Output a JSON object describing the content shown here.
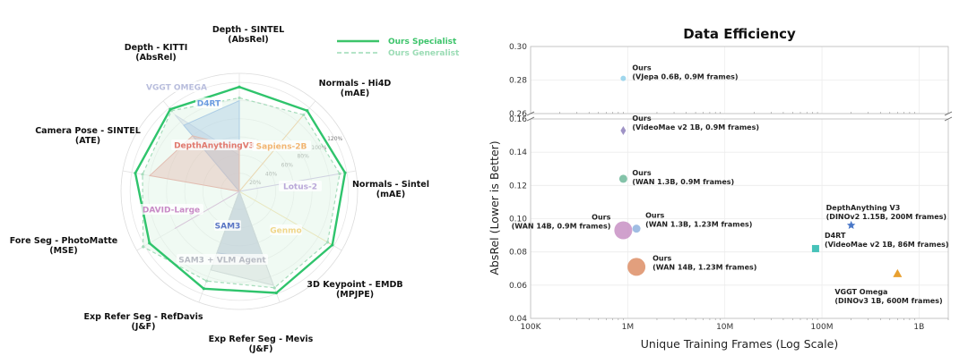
{
  "chart_data": [
    {
      "type": "radar",
      "axes": [
        "Depth - SINTEL\n(AbsRel)",
        "Normals - Hi4D\n(mAE)",
        "Normals - Sintel\n(mAE)",
        "3D Keypoint - EMDB\n(MPJPE)",
        "Exp Refer Seg - Mevis\n(J&F)",
        "Exp Refer Seg - RefDavis\n(J&F)",
        "Fore Seg - PhotoMatte\n(MSE)",
        "Camera Pose - SINTEL\n(ATE)",
        "Depth - KITTI\n(AbsRel)"
      ],
      "radial_ticks": [
        "20%",
        "40%",
        "60%",
        "80%",
        "100%",
        "120%"
      ],
      "tick_values": [
        20,
        40,
        60,
        80,
        100,
        120
      ],
      "rmax": 130,
      "legend": [
        {
          "name": "Ours Specialist",
          "color": "#3cc46a",
          "dashed": false
        },
        {
          "name": "Ours Generalist",
          "color": "#9bdcb5",
          "dashed": true
        }
      ],
      "series": [
        {
          "name": "Ours Specialist",
          "kind": "line",
          "color": "#2fc46c",
          "values": [
            115,
            116,
            118,
            118,
            119,
            114,
            114,
            116,
            118
          ]
        },
        {
          "name": "Ours Generalist",
          "kind": "dashed",
          "color": "#a6dcbb",
          "values": [
            103,
            110,
            112,
            112,
            113,
            105,
            122,
            108,
            116
          ]
        },
        {
          "name": "VGGT OMEGA",
          "kind": "baseline",
          "color": "#b9bedd",
          "values": [
            40,
            0,
            0,
            0,
            0,
            0,
            0,
            0,
            110
          ]
        },
        {
          "name": "D4RT",
          "kind": "baseline",
          "color": "#6a9be0",
          "values": [
            100,
            0,
            0,
            0,
            0,
            0,
            0,
            0,
            95
          ]
        },
        {
          "name": "DepthAnythingV3",
          "kind": "baseline",
          "color": "#e0786e",
          "values": [
            48,
            0,
            0,
            0,
            0,
            0,
            0,
            100,
            80
          ]
        },
        {
          "name": "Sapiens-2B",
          "kind": "baseline",
          "color": "#f2b572",
          "values": [
            0,
            110,
            0,
            0,
            0,
            0,
            0,
            0,
            0
          ]
        },
        {
          "name": "Lotus-2",
          "kind": "baseline",
          "color": "#b9a7d8",
          "values": [
            0,
            0,
            112,
            0,
            0,
            0,
            0,
            0,
            0
          ]
        },
        {
          "name": "Genmo",
          "kind": "baseline",
          "color": "#f0d68a",
          "values": [
            0,
            0,
            0,
            118,
            0,
            0,
            0,
            0,
            0
          ]
        },
        {
          "name": "SAM3",
          "kind": "baseline",
          "color": "#5b76c5",
          "values": [
            0,
            0,
            0,
            0,
            80,
            72,
            0,
            0,
            0
          ]
        },
        {
          "name": "SAM3 + VLM Agent",
          "kind": "baseline",
          "color": "#b8bcc4",
          "values": [
            0,
            0,
            0,
            0,
            110,
            92,
            0,
            0,
            0
          ]
        },
        {
          "name": "DAVID-Large",
          "kind": "baseline",
          "color": "#c88ac6",
          "values": [
            0,
            0,
            0,
            0,
            0,
            0,
            82,
            0,
            0
          ]
        }
      ]
    },
    {
      "type": "scatter",
      "title": "Data Efficiency",
      "xlabel": "Unique Training Frames (Log Scale)",
      "ylabel": "AbsRel (Lower is Better)",
      "xscale": "log",
      "xlim": [
        100000,
        2000000000
      ],
      "x_ticks": [
        100000,
        1000000,
        10000000,
        100000000,
        1000000000
      ],
      "x_tick_labels": [
        "100K",
        "1M",
        "10M",
        "100M",
        "1B"
      ],
      "y_broken_axis": true,
      "ylim_upper": [
        0.26,
        0.3
      ],
      "y_ticks_upper": [
        "0.26",
        "0.28",
        "0.30"
      ],
      "ylim_lower": [
        0.04,
        0.16
      ],
      "y_ticks_lower": [
        "0.04",
        "0.06",
        "0.08",
        "0.10",
        "0.12",
        "0.14",
        "0.16"
      ],
      "grid": true,
      "points": [
        {
          "label": [
            "Ours",
            "(VJepa 0.6B, 0.9M frames)"
          ],
          "x": 900000,
          "y": 0.281,
          "marker": "circle",
          "size": 3,
          "color": "#8fd0ea"
        },
        {
          "label": [
            "Ours",
            "(VideoMae v2 1B, 0.9M frames)"
          ],
          "x": 900000,
          "y": 0.153,
          "marker": "diamond",
          "size": 5,
          "color": "#9f93c6"
        },
        {
          "label": [
            "Ours",
            "(WAN 1.3B, 0.9M frames)"
          ],
          "x": 900000,
          "y": 0.124,
          "marker": "circle",
          "size": 4.5,
          "color": "#6fb89a"
        },
        {
          "label": [
            "Ours",
            "(WAN 14B, 0.9M frames)"
          ],
          "x": 900000,
          "y": 0.093,
          "marker": "circle",
          "size": 10,
          "color": "#c890c4"
        },
        {
          "label": [
            "Ours",
            "(WAN 1.3B, 1.23M frames)"
          ],
          "x": 1230000,
          "y": 0.094,
          "marker": "circle",
          "size": 4.5,
          "color": "#8fb2de"
        },
        {
          "label": [
            "Ours",
            "(WAN 14B, 1.23M frames)"
          ],
          "x": 1230000,
          "y": 0.071,
          "marker": "circle",
          "size": 10,
          "color": "#dd8e66"
        },
        {
          "label": [
            "DepthAnything V3",
            "(DINOv2 1.15B, 200M frames)"
          ],
          "x": 200000000,
          "y": 0.096,
          "marker": "star",
          "size": 5,
          "color": "#4a78c8"
        },
        {
          "label": [
            "D4RT",
            "(VideoMae v2 1B, 86M frames)"
          ],
          "x": 86000000,
          "y": 0.082,
          "marker": "square",
          "size": 4,
          "color": "#47c2b9"
        },
        {
          "label": [
            "VGGT Omega",
            "(DINOv3 1B, 600M frames)"
          ],
          "x": 600000000,
          "y": 0.067,
          "marker": "triangle",
          "size": 5,
          "color": "#e8a030"
        }
      ]
    }
  ]
}
